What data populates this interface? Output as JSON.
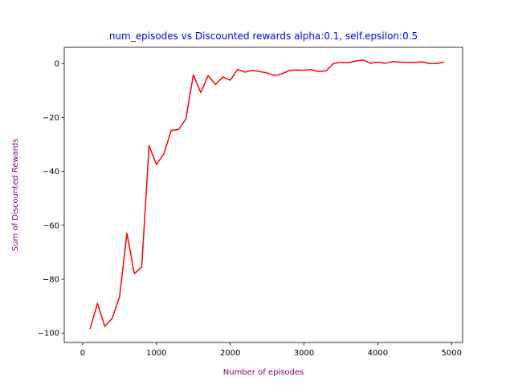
{
  "colors": {
    "title": "#0000ff",
    "axis_label": "#800080",
    "series_line": "#ff0000",
    "axes": "#000000"
  },
  "chart_data": {
    "type": "line",
    "title": "num_episodes vs Discounted rewards alpha:0.1, self.epsilon:0.5",
    "xlabel": "Number of episodes",
    "ylabel": "Sum of Discounted Rewards",
    "xlim": [
      -250,
      5150
    ],
    "ylim": [
      -103.5,
      6.0
    ],
    "xticks": [
      0,
      1000,
      2000,
      3000,
      4000,
      5000
    ],
    "yticks": [
      -100,
      -80,
      -60,
      -40,
      -20,
      0
    ],
    "grid": false,
    "legend": "none",
    "series": [
      {
        "x": [
          100,
          200,
          300,
          400,
          500,
          600,
          700,
          800,
          900,
          1000,
          1100,
          1200,
          1300,
          1400,
          1500,
          1600,
          1700,
          1800,
          1900,
          2000,
          2100,
          2200,
          2300,
          2400,
          2500,
          2600,
          2700,
          2800,
          2900,
          3000,
          3100,
          3200,
          3300,
          3400,
          3500,
          3600,
          3700,
          3800,
          3900,
          4000,
          4100,
          4200,
          4300,
          4400,
          4500,
          4600,
          4700,
          4800,
          4900
        ],
        "y": [
          -98.5,
          -89.0,
          -97.5,
          -94.5,
          -86.5,
          -63.0,
          -78.0,
          -75.5,
          -30.5,
          -37.5,
          -33.5,
          -24.8,
          -24.5,
          -20.5,
          -4.2,
          -10.8,
          -4.5,
          -7.8,
          -5.0,
          -6.2,
          -2.2,
          -3.2,
          -2.5,
          -3.0,
          -3.5,
          -4.5,
          -3.8,
          -2.6,
          -2.4,
          -2.5,
          -2.3,
          -3.0,
          -2.7,
          0.0,
          0.4,
          0.3,
          0.9,
          1.3,
          0.1,
          0.5,
          0.1,
          0.7,
          0.5,
          0.4,
          0.4,
          0.6,
          0.0,
          0.0,
          0.5
        ]
      }
    ]
  }
}
